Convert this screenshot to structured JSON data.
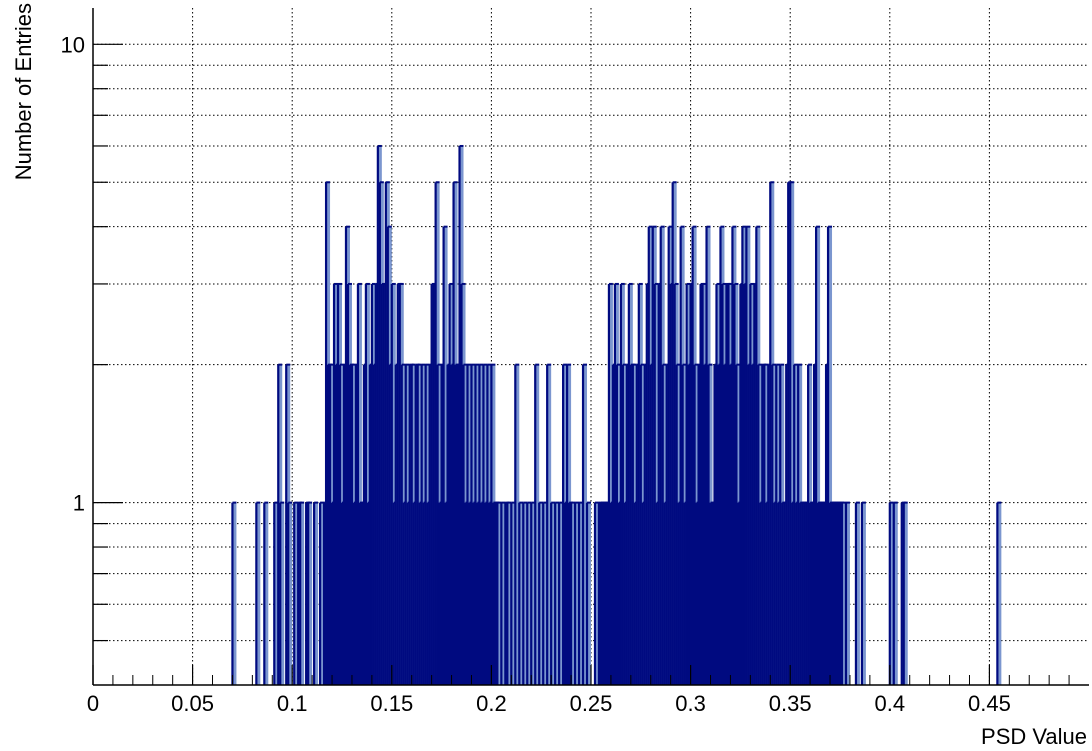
{
  "chart_data": {
    "type": "bar",
    "subtype": "histogram",
    "xlabel": "PSD Value",
    "ylabel": "Number of Entries",
    "xlim": [
      0,
      0.5
    ],
    "ylim": [
      0.4,
      12
    ],
    "y_scale": "log",
    "grid": true,
    "legend": "none",
    "bin_width": 0.002,
    "x_ticks": [
      0,
      0.05,
      0.1,
      0.15,
      0.2,
      0.25,
      0.3,
      0.35,
      0.4,
      0.45
    ],
    "x_tick_labels": [
      "0",
      "0.05",
      "0.1",
      "0.15",
      "0.2",
      "0.25",
      "0.3",
      "0.35",
      "0.4",
      "0.45"
    ],
    "y_ticks": [
      1,
      10
    ],
    "y_tick_labels": [
      "1",
      "10"
    ],
    "colors": {
      "fill": "#7b96cf",
      "line": "#000a80",
      "grid": "#000000",
      "axis": "#000000"
    },
    "bins": [
      [
        0.07,
        1
      ],
      [
        0.082,
        1
      ],
      [
        0.086,
        1
      ],
      [
        0.091,
        1
      ],
      [
        0.093,
        2
      ],
      [
        0.094,
        1
      ],
      [
        0.097,
        2
      ],
      [
        0.098,
        1
      ],
      [
        0.101,
        1
      ],
      [
        0.103,
        1
      ],
      [
        0.104,
        1
      ],
      [
        0.107,
        1
      ],
      [
        0.108,
        1
      ],
      [
        0.111,
        1
      ],
      [
        0.114,
        1
      ],
      [
        0.116,
        1
      ],
      [
        0.117,
        5
      ],
      [
        0.118,
        2
      ],
      [
        0.119,
        2
      ],
      [
        0.12,
        1
      ],
      [
        0.121,
        3
      ],
      [
        0.122,
        2
      ],
      [
        0.123,
        3
      ],
      [
        0.124,
        2
      ],
      [
        0.125,
        1
      ],
      [
        0.126,
        2
      ],
      [
        0.127,
        4
      ],
      [
        0.128,
        3
      ],
      [
        0.129,
        2
      ],
      [
        0.13,
        2
      ],
      [
        0.131,
        1
      ],
      [
        0.132,
        2
      ],
      [
        0.133,
        3
      ],
      [
        0.134,
        1
      ],
      [
        0.135,
        1
      ],
      [
        0.136,
        2
      ],
      [
        0.137,
        3
      ],
      [
        0.138,
        1
      ],
      [
        0.139,
        2
      ],
      [
        0.14,
        3
      ],
      [
        0.141,
        2
      ],
      [
        0.142,
        3
      ],
      [
        0.143,
        6
      ],
      [
        0.144,
        5
      ],
      [
        0.145,
        3
      ],
      [
        0.146,
        3
      ],
      [
        0.147,
        5
      ],
      [
        0.148,
        4
      ],
      [
        0.149,
        2
      ],
      [
        0.15,
        3
      ],
      [
        0.151,
        1
      ],
      [
        0.152,
        2
      ],
      [
        0.153,
        3
      ],
      [
        0.154,
        3
      ],
      [
        0.155,
        2
      ],
      [
        0.156,
        1
      ],
      [
        0.157,
        2
      ],
      [
        0.158,
        1
      ],
      [
        0.159,
        2
      ],
      [
        0.16,
        2
      ],
      [
        0.161,
        1
      ],
      [
        0.162,
        2
      ],
      [
        0.163,
        2
      ],
      [
        0.164,
        1
      ],
      [
        0.165,
        2
      ],
      [
        0.166,
        1
      ],
      [
        0.167,
        2
      ],
      [
        0.168,
        1
      ],
      [
        0.169,
        2
      ],
      [
        0.17,
        3
      ],
      [
        0.171,
        3
      ],
      [
        0.172,
        5
      ],
      [
        0.173,
        2
      ],
      [
        0.174,
        1
      ],
      [
        0.175,
        2
      ],
      [
        0.176,
        4
      ],
      [
        0.177,
        1
      ],
      [
        0.178,
        2
      ],
      [
        0.179,
        3
      ],
      [
        0.18,
        2
      ],
      [
        0.181,
        5
      ],
      [
        0.182,
        2
      ],
      [
        0.183,
        2
      ],
      [
        0.184,
        6
      ],
      [
        0.185,
        3
      ],
      [
        0.186,
        2
      ],
      [
        0.187,
        1
      ],
      [
        0.188,
        2
      ],
      [
        0.189,
        1
      ],
      [
        0.19,
        2
      ],
      [
        0.191,
        1
      ],
      [
        0.192,
        2
      ],
      [
        0.193,
        1
      ],
      [
        0.194,
        2
      ],
      [
        0.195,
        1
      ],
      [
        0.196,
        2
      ],
      [
        0.197,
        1
      ],
      [
        0.198,
        2
      ],
      [
        0.199,
        1
      ],
      [
        0.2,
        2
      ],
      [
        0.201,
        1
      ],
      [
        0.202,
        1
      ],
      [
        0.203,
        1
      ],
      [
        0.205,
        1
      ],
      [
        0.207,
        1
      ],
      [
        0.208,
        1
      ],
      [
        0.21,
        1
      ],
      [
        0.212,
        2
      ],
      [
        0.214,
        1
      ],
      [
        0.216,
        1
      ],
      [
        0.218,
        1
      ],
      [
        0.22,
        1
      ],
      [
        0.222,
        2
      ],
      [
        0.224,
        1
      ],
      [
        0.226,
        1
      ],
      [
        0.228,
        2
      ],
      [
        0.23,
        1
      ],
      [
        0.232,
        1
      ],
      [
        0.234,
        1
      ],
      [
        0.236,
        2
      ],
      [
        0.237,
        1
      ],
      [
        0.238,
        2
      ],
      [
        0.239,
        1
      ],
      [
        0.24,
        1
      ],
      [
        0.242,
        1
      ],
      [
        0.244,
        1
      ],
      [
        0.246,
        2
      ],
      [
        0.248,
        1
      ],
      [
        0.252,
        1
      ],
      [
        0.254,
        1
      ],
      [
        0.255,
        1
      ],
      [
        0.256,
        1
      ],
      [
        0.257,
        1
      ],
      [
        0.258,
        1
      ],
      [
        0.259,
        3
      ],
      [
        0.26,
        1
      ],
      [
        0.261,
        2
      ],
      [
        0.262,
        3
      ],
      [
        0.263,
        2
      ],
      [
        0.264,
        1
      ],
      [
        0.265,
        3
      ],
      [
        0.266,
        2
      ],
      [
        0.267,
        1
      ],
      [
        0.268,
        2
      ],
      [
        0.269,
        3
      ],
      [
        0.27,
        2
      ],
      [
        0.271,
        2
      ],
      [
        0.272,
        1
      ],
      [
        0.273,
        2
      ],
      [
        0.274,
        3
      ],
      [
        0.275,
        2
      ],
      [
        0.276,
        1
      ],
      [
        0.277,
        2
      ],
      [
        0.278,
        3
      ],
      [
        0.279,
        4
      ],
      [
        0.28,
        2
      ],
      [
        0.281,
        4
      ],
      [
        0.282,
        3
      ],
      [
        0.283,
        1
      ],
      [
        0.284,
        3
      ],
      [
        0.285,
        4
      ],
      [
        0.286,
        2
      ],
      [
        0.287,
        1
      ],
      [
        0.288,
        2
      ],
      [
        0.289,
        4
      ],
      [
        0.29,
        3
      ],
      [
        0.291,
        5
      ],
      [
        0.292,
        3
      ],
      [
        0.293,
        2
      ],
      [
        0.294,
        1
      ],
      [
        0.295,
        4
      ],
      [
        0.296,
        2
      ],
      [
        0.297,
        1
      ],
      [
        0.298,
        3
      ],
      [
        0.299,
        2
      ],
      [
        0.3,
        3
      ],
      [
        0.301,
        4
      ],
      [
        0.302,
        2
      ],
      [
        0.303,
        1
      ],
      [
        0.304,
        2
      ],
      [
        0.305,
        3
      ],
      [
        0.306,
        3
      ],
      [
        0.307,
        2
      ],
      [
        0.308,
        4
      ],
      [
        0.309,
        2
      ],
      [
        0.31,
        1
      ],
      [
        0.311,
        1
      ],
      [
        0.312,
        2
      ],
      [
        0.313,
        3
      ],
      [
        0.314,
        2
      ],
      [
        0.315,
        4
      ],
      [
        0.316,
        3
      ],
      [
        0.317,
        2
      ],
      [
        0.318,
        3
      ],
      [
        0.319,
        3
      ],
      [
        0.32,
        2
      ],
      [
        0.321,
        4
      ],
      [
        0.322,
        3
      ],
      [
        0.323,
        2
      ],
      [
        0.324,
        1
      ],
      [
        0.325,
        3
      ],
      [
        0.326,
        4
      ],
      [
        0.327,
        3
      ],
      [
        0.328,
        4
      ],
      [
        0.329,
        2
      ],
      [
        0.33,
        3
      ],
      [
        0.331,
        2
      ],
      [
        0.332,
        3
      ],
      [
        0.333,
        4
      ],
      [
        0.334,
        2
      ],
      [
        0.335,
        1
      ],
      [
        0.336,
        2
      ],
      [
        0.337,
        2
      ],
      [
        0.338,
        1
      ],
      [
        0.339,
        2
      ],
      [
        0.34,
        5
      ],
      [
        0.341,
        2
      ],
      [
        0.342,
        1
      ],
      [
        0.343,
        2
      ],
      [
        0.344,
        1
      ],
      [
        0.345,
        2
      ],
      [
        0.346,
        1
      ],
      [
        0.347,
        1
      ],
      [
        0.348,
        2
      ],
      [
        0.349,
        5
      ],
      [
        0.35,
        5
      ],
      [
        0.351,
        1
      ],
      [
        0.352,
        2
      ],
      [
        0.353,
        1
      ],
      [
        0.354,
        2
      ],
      [
        0.355,
        1
      ],
      [
        0.356,
        1
      ],
      [
        0.357,
        1
      ],
      [
        0.358,
        1
      ],
      [
        0.359,
        2
      ],
      [
        0.36,
        1
      ],
      [
        0.361,
        1
      ],
      [
        0.362,
        2
      ],
      [
        0.363,
        4
      ],
      [
        0.364,
        1
      ],
      [
        0.365,
        1
      ],
      [
        0.366,
        1
      ],
      [
        0.367,
        1
      ],
      [
        0.368,
        2
      ],
      [
        0.369,
        4
      ],
      [
        0.37,
        1
      ],
      [
        0.371,
        1
      ],
      [
        0.372,
        1
      ],
      [
        0.373,
        1
      ],
      [
        0.374,
        1
      ],
      [
        0.375,
        1
      ],
      [
        0.376,
        1
      ],
      [
        0.378,
        1
      ],
      [
        0.383,
        1
      ],
      [
        0.386,
        1
      ],
      [
        0.4,
        1
      ],
      [
        0.402,
        1
      ],
      [
        0.406,
        1
      ],
      [
        0.407,
        1
      ],
      [
        0.454,
        1
      ]
    ]
  }
}
